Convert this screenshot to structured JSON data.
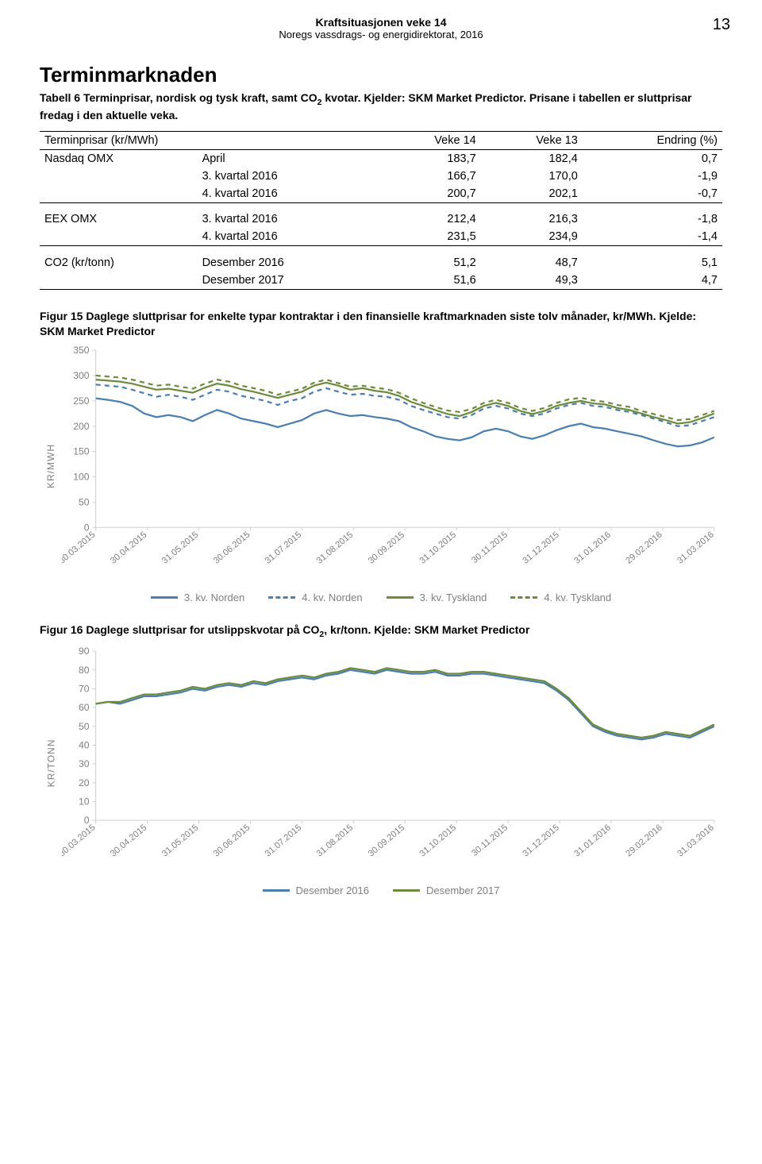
{
  "page_number": "13",
  "header": {
    "title": "Kraftsituasjonen veke 14",
    "subtitle": "Noregs vassdrags- og energidirektorat, 2016"
  },
  "section": {
    "title": "Terminmarknaden",
    "caption_a": "Tabell 6 Terminprisar, nordisk og tysk kraft, samt CO",
    "caption_b": " kvotar. Kjelder: SKM Market Predictor. Prisane i tabellen er sluttprisar fredag i den aktuelle veka.",
    "sub2": "2"
  },
  "table": {
    "col0": "Terminprisar (kr/MWh)",
    "col2": "Veke 14",
    "col3": "Veke 13",
    "col4": "Endring (%)",
    "groups": [
      {
        "label": "Nasdaq OMX",
        "rows": [
          {
            "c1": "April",
            "c2": "183,7",
            "c3": "182,4",
            "c4": "0,7"
          },
          {
            "c1": "3. kvartal 2016",
            "c2": "166,7",
            "c3": "170,0",
            "c4": "-1,9"
          },
          {
            "c1": "4. kvartal 2016",
            "c2": "200,7",
            "c3": "202,1",
            "c4": "-0,7"
          }
        ]
      },
      {
        "label": "EEX OMX",
        "rows": [
          {
            "c1": "3. kvartal 2016",
            "c2": "212,4",
            "c3": "216,3",
            "c4": "-1,8"
          },
          {
            "c1": "4. kvartal 2016",
            "c2": "231,5",
            "c3": "234,9",
            "c4": "-1,4"
          }
        ]
      },
      {
        "label": "CO2 (kr/tonn)",
        "rows": [
          {
            "c1": "Desember 2016",
            "c2": "51,2",
            "c3": "48,7",
            "c4": "5,1"
          },
          {
            "c1": "Desember 2017",
            "c2": "51,6",
            "c3": "49,3",
            "c4": "4,7"
          }
        ]
      }
    ]
  },
  "fig15": {
    "caption": "Figur 15 Daglege sluttprisar for enkelte typar kontraktar i den finansielle kraftmarknaden siste tolv månader, kr/MWh. Kjelde: SKM Market Predictor",
    "ylabel": "KR/MWH",
    "ylim": [
      0,
      350
    ],
    "ytick_step": 50,
    "x_categories": [
      "30.03.2015",
      "30.04.2015",
      "31.05.2015",
      "30.06.2015",
      "31.07.2015",
      "31.08.2015",
      "30.09.2015",
      "31.10.2015",
      "30.11.2015",
      "31.12.2015",
      "31.01.2016",
      "29.02.2016",
      "31.03.2016"
    ],
    "background_color": "#ffffff",
    "axis_color": "#cfcfcf",
    "tick_color": "#7f7f7f",
    "series": [
      {
        "name": "3. kv. Norden",
        "color": "#4a7fb0",
        "dash": "solid",
        "values": [
          255,
          252,
          248,
          240,
          225,
          218,
          222,
          218,
          210,
          222,
          232,
          225,
          215,
          210,
          205,
          198,
          205,
          212,
          225,
          232,
          225,
          220,
          222,
          218,
          215,
          210,
          198,
          190,
          180,
          175,
          172,
          178,
          190,
          195,
          190,
          180,
          175,
          182,
          192,
          200,
          205,
          198,
          195,
          190,
          185,
          180,
          172,
          165,
          160,
          162,
          168,
          178
        ]
      },
      {
        "name": "4. kv. Norden",
        "color": "#4a7fb0",
        "dash": "dashed",
        "values": [
          282,
          280,
          278,
          272,
          265,
          258,
          262,
          258,
          252,
          262,
          272,
          268,
          260,
          255,
          250,
          242,
          250,
          255,
          268,
          275,
          268,
          262,
          264,
          260,
          258,
          252,
          240,
          232,
          225,
          218,
          215,
          222,
          235,
          240,
          235,
          225,
          220,
          225,
          235,
          242,
          246,
          240,
          238,
          232,
          228,
          222,
          215,
          208,
          200,
          202,
          210,
          218
        ]
      },
      {
        "name": "3. kv. Tyskland",
        "color": "#6e8b3d",
        "dash": "solid",
        "values": [
          292,
          290,
          288,
          284,
          278,
          272,
          274,
          270,
          266,
          276,
          284,
          280,
          273,
          268,
          262,
          256,
          262,
          268,
          280,
          286,
          280,
          272,
          275,
          270,
          267,
          260,
          248,
          240,
          232,
          224,
          220,
          228,
          240,
          246,
          240,
          230,
          224,
          230,
          240,
          246,
          250,
          245,
          243,
          236,
          232,
          225,
          218,
          212,
          205,
          208,
          216,
          225
        ]
      },
      {
        "name": "4. kv. Tyskland",
        "color": "#6e8b3d",
        "dash": "dashed",
        "values": [
          300,
          298,
          296,
          292,
          286,
          280,
          282,
          278,
          274,
          284,
          292,
          288,
          280,
          275,
          270,
          262,
          268,
          274,
          286,
          292,
          285,
          278,
          280,
          276,
          273,
          266,
          255,
          246,
          238,
          231,
          228,
          234,
          246,
          252,
          246,
          236,
          230,
          236,
          246,
          253,
          256,
          251,
          248,
          242,
          238,
          230,
          224,
          218,
          212,
          214,
          222,
          230
        ]
      }
    ]
  },
  "fig16": {
    "caption_a": "Figur 16 Daglege sluttprisar for utslippskvotar på CO",
    "caption_b": ", kr/tonn. Kjelde: SKM Market Predictor",
    "sub2": "2",
    "ylabel": "KR/TONN",
    "ylim": [
      0,
      90
    ],
    "ytick_step": 10,
    "x_categories": [
      "30.03.2015",
      "30.04.2015",
      "31.05.2015",
      "30.06.2015",
      "31.07.2015",
      "31.08.2015",
      "30.09.2015",
      "31.10.2015",
      "30.11.2015",
      "31.12.2015",
      "31.01.2016",
      "29.02.2016",
      "31.03.2016"
    ],
    "background_color": "#ffffff",
    "axis_color": "#cfcfcf",
    "tick_color": "#7f7f7f",
    "series": [
      {
        "name": "Desember 2016",
        "color": "#4a7fb0",
        "dash": "solid",
        "values": [
          62,
          63,
          62,
          64,
          66,
          66,
          67,
          68,
          70,
          69,
          71,
          72,
          71,
          73,
          72,
          74,
          75,
          76,
          75,
          77,
          78,
          80,
          79,
          78,
          80,
          79,
          78,
          78,
          79,
          77,
          77,
          78,
          78,
          77,
          76,
          75,
          74,
          73,
          69,
          64,
          57,
          50,
          47,
          45,
          44,
          43,
          44,
          46,
          45,
          44,
          47,
          50
        ]
      },
      {
        "name": "Desember 2017",
        "color": "#6e8b3d",
        "dash": "solid",
        "values": [
          62,
          63,
          63,
          65,
          67,
          67,
          68,
          69,
          71,
          70,
          72,
          73,
          72,
          74,
          73,
          75,
          76,
          77,
          76,
          78,
          79,
          81,
          80,
          79,
          81,
          80,
          79,
          79,
          80,
          78,
          78,
          79,
          79,
          78,
          77,
          76,
          75,
          74,
          70,
          65,
          58,
          51,
          48,
          46,
          45,
          44,
          45,
          47,
          46,
          45,
          48,
          51
        ]
      }
    ]
  }
}
